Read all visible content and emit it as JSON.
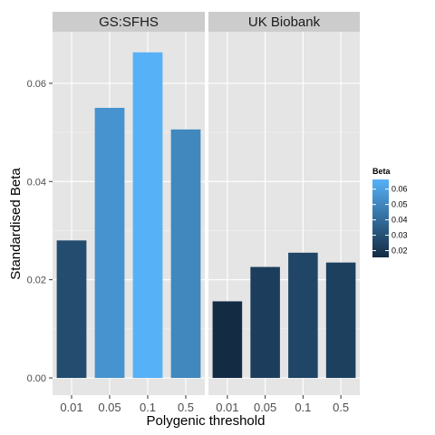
{
  "chart_data": {
    "type": "bar",
    "xlabel": "Polygenic threshold",
    "ylabel": "Standardised Beta",
    "ylim": [
      -0.0035,
      0.0705
    ],
    "yticks": [
      0.0,
      0.02,
      0.04,
      0.06
    ],
    "ytick_labels": [
      "0.00",
      "0.02",
      "0.04",
      "0.06"
    ],
    "categories": [
      "0.01",
      "0.05",
      "0.1",
      "0.5"
    ],
    "facets": [
      {
        "name": "GS:SFHS",
        "values": [
          0.028,
          0.055,
          0.0663,
          0.0506
        ]
      },
      {
        "name": "UK Biobank",
        "values": [
          0.0156,
          0.0226,
          0.0255,
          0.0235
        ]
      }
    ],
    "grid": true,
    "legend": {
      "title": "Beta",
      "position": "right",
      "ticks": [
        "0.02",
        "0.03",
        "0.04",
        "0.05",
        "0.06"
      ],
      "tick_values": [
        0.02,
        0.03,
        0.04,
        0.05,
        0.06
      ],
      "range": [
        0.0156,
        0.0663
      ],
      "color_low": "#132B43",
      "color_high": "#56B1F7"
    },
    "colors": {
      "panel_bg": "#e5e5e5",
      "grid": "#ffffff",
      "strip_bg": "#cccccc"
    }
  }
}
